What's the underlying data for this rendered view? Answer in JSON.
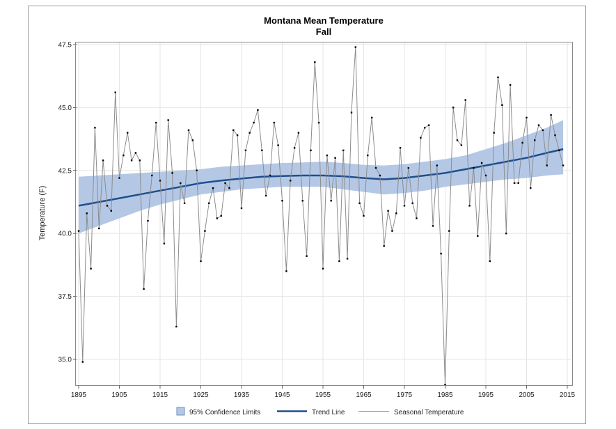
{
  "chart_data": {
    "type": "line",
    "title": "Montana Mean Temperature",
    "subtitle": "Fall",
    "xlabel": "",
    "ylabel": "Temperature (F)",
    "xlim": [
      1895,
      2015
    ],
    "ylim": [
      34,
      47.5
    ],
    "x_ticks": [
      "1895",
      "1905",
      "1915",
      "1925",
      "1935",
      "1945",
      "1955",
      "1965",
      "1975",
      "1985",
      "1995",
      "2005",
      "2015"
    ],
    "y_ticks": [
      "35.0",
      "37.5",
      "40.0",
      "42.5",
      "45.0",
      "47.5"
    ],
    "grid": true,
    "legend_position": "bottom",
    "legend": [
      "95% Confidence Limits",
      "Trend Line",
      "Seasonal Temperature"
    ],
    "colors": {
      "band": "#b4c8e6",
      "trend": "#1f4e8c",
      "seasonal": "#8c8c8c",
      "marker": "#000000"
    },
    "series": [
      {
        "name": "Seasonal Temperature",
        "x": [
          1895,
          1896,
          1897,
          1898,
          1899,
          1900,
          1901,
          1902,
          1903,
          1904,
          1905,
          1906,
          1907,
          1908,
          1909,
          1910,
          1911,
          1912,
          1913,
          1914,
          1915,
          1916,
          1917,
          1918,
          1919,
          1920,
          1921,
          1922,
          1923,
          1924,
          1925,
          1926,
          1927,
          1928,
          1929,
          1930,
          1931,
          1932,
          1933,
          1934,
          1935,
          1936,
          1937,
          1938,
          1939,
          1940,
          1941,
          1942,
          1943,
          1944,
          1945,
          1946,
          1947,
          1948,
          1949,
          1950,
          1951,
          1952,
          1953,
          1954,
          1955,
          1956,
          1957,
          1958,
          1959,
          1960,
          1961,
          1962,
          1963,
          1964,
          1965,
          1966,
          1967,
          1968,
          1969,
          1970,
          1971,
          1972,
          1973,
          1974,
          1975,
          1976,
          1977,
          1978,
          1979,
          1980,
          1981,
          1982,
          1983,
          1984,
          1985,
          1986,
          1987,
          1988,
          1989,
          1990,
          1991,
          1992,
          1993,
          1994,
          1995,
          1996,
          1997,
          1998,
          1999,
          2000,
          2001,
          2002,
          2003,
          2004,
          2005,
          2006,
          2007,
          2008,
          2009,
          2010,
          2011,
          2012,
          2013,
          2014
        ],
        "values": [
          40.1,
          34.9,
          40.8,
          38.6,
          44.2,
          40.2,
          42.9,
          41.1,
          40.9,
          45.6,
          42.2,
          43.1,
          44.0,
          42.9,
          43.2,
          42.9,
          37.8,
          40.5,
          42.3,
          44.4,
          42.1,
          39.6,
          44.5,
          42.4,
          36.3,
          42.0,
          41.2,
          44.1,
          43.7,
          42.5,
          38.9,
          40.1,
          41.2,
          41.8,
          40.6,
          40.7,
          42.0,
          41.8,
          44.1,
          43.9,
          41.0,
          43.3,
          44.0,
          44.4,
          44.9,
          43.3,
          41.5,
          42.3,
          44.4,
          43.5,
          41.3,
          38.5,
          42.1,
          43.4,
          44.0,
          41.3,
          39.1,
          43.3,
          46.8,
          44.4,
          38.6,
          43.1,
          41.3,
          43.0,
          38.9,
          43.3,
          39.0,
          44.8,
          47.4,
          41.2,
          40.7,
          43.1,
          44.6,
          42.6,
          42.3,
          39.5,
          40.9,
          40.1,
          40.8,
          43.4,
          41.1,
          42.6,
          41.2,
          40.6,
          43.8,
          44.2,
          44.3,
          40.3,
          42.7,
          39.2,
          34.0,
          40.1,
          45.0,
          43.7,
          43.5,
          45.3,
          41.1,
          42.6,
          39.9,
          42.8,
          42.3,
          38.9,
          44.0,
          46.2,
          45.1,
          40.0,
          45.9,
          42.0,
          42.0,
          43.6,
          44.6,
          41.8,
          43.7,
          44.3,
          44.1,
          42.7,
          44.7,
          43.9,
          43.3,
          42.7
        ]
      },
      {
        "name": "Trend Line",
        "x": [
          1895,
          1900,
          1905,
          1910,
          1915,
          1920,
          1925,
          1930,
          1935,
          1940,
          1945,
          1950,
          1955,
          1960,
          1965,
          1970,
          1975,
          1980,
          1985,
          1990,
          1995,
          2000,
          2005,
          2010,
          2014
        ],
        "values": [
          41.1,
          41.25,
          41.4,
          41.55,
          41.7,
          41.85,
          42.0,
          42.1,
          42.18,
          42.25,
          42.28,
          42.3,
          42.3,
          42.27,
          42.2,
          42.15,
          42.2,
          42.3,
          42.4,
          42.55,
          42.7,
          42.85,
          43.0,
          43.2,
          43.35
        ]
      },
      {
        "name": "95% Confidence Limits",
        "x": [
          1895,
          1900,
          1905,
          1910,
          1915,
          1920,
          1925,
          1930,
          1935,
          1940,
          1945,
          1950,
          1955,
          1960,
          1965,
          1970,
          1975,
          1980,
          1985,
          1990,
          1995,
          2000,
          2005,
          2010,
          2014
        ],
        "lower": [
          40.0,
          40.3,
          40.6,
          40.9,
          41.15,
          41.35,
          41.55,
          41.65,
          41.75,
          41.8,
          41.85,
          41.85,
          41.85,
          41.75,
          41.65,
          41.55,
          41.6,
          41.7,
          41.85,
          41.95,
          42.05,
          42.15,
          42.2,
          42.3,
          42.35
        ],
        "upper": [
          42.25,
          42.3,
          42.35,
          42.4,
          42.45,
          42.5,
          42.55,
          42.65,
          42.7,
          42.75,
          42.8,
          42.82,
          42.85,
          42.8,
          42.72,
          42.7,
          42.75,
          42.85,
          42.95,
          43.1,
          43.35,
          43.6,
          43.9,
          44.2,
          44.5
        ]
      }
    ]
  }
}
